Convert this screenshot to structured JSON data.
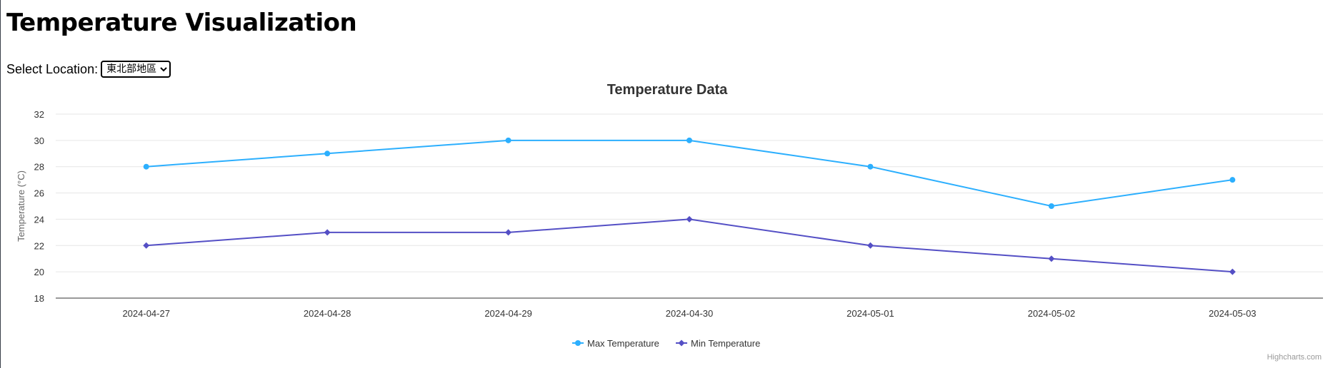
{
  "page": {
    "title": "Temperature Visualization"
  },
  "location": {
    "label": "Select Location:",
    "selected": "東北部地區"
  },
  "credits": "Highcharts.com",
  "colors": {
    "max_series": "#2caffe",
    "min_series": "#544fc5",
    "grid": "#e6e6e6",
    "axis_line": "#333333",
    "label_text": "#333333",
    "axis_title": "#666666"
  },
  "chart_data": {
    "type": "line",
    "title": "Temperature Data",
    "xlabel": "",
    "ylabel": "Temperature (°C)",
    "categories": [
      "2024-04-27",
      "2024-04-28",
      "2024-04-29",
      "2024-04-30",
      "2024-05-01",
      "2024-05-02",
      "2024-05-03"
    ],
    "series": [
      {
        "name": "Max Temperature",
        "marker": "circle",
        "values": [
          28,
          29,
          30,
          30,
          28,
          25,
          27
        ]
      },
      {
        "name": "Min Temperature",
        "marker": "diamond",
        "values": [
          22,
          23,
          23,
          24,
          22,
          21,
          20
        ]
      }
    ],
    "ylim": [
      18,
      32
    ],
    "yticks": [
      "18",
      "20",
      "22",
      "24",
      "26",
      "28",
      "30",
      "32"
    ],
    "grid": true,
    "legend": "bottom-center"
  }
}
